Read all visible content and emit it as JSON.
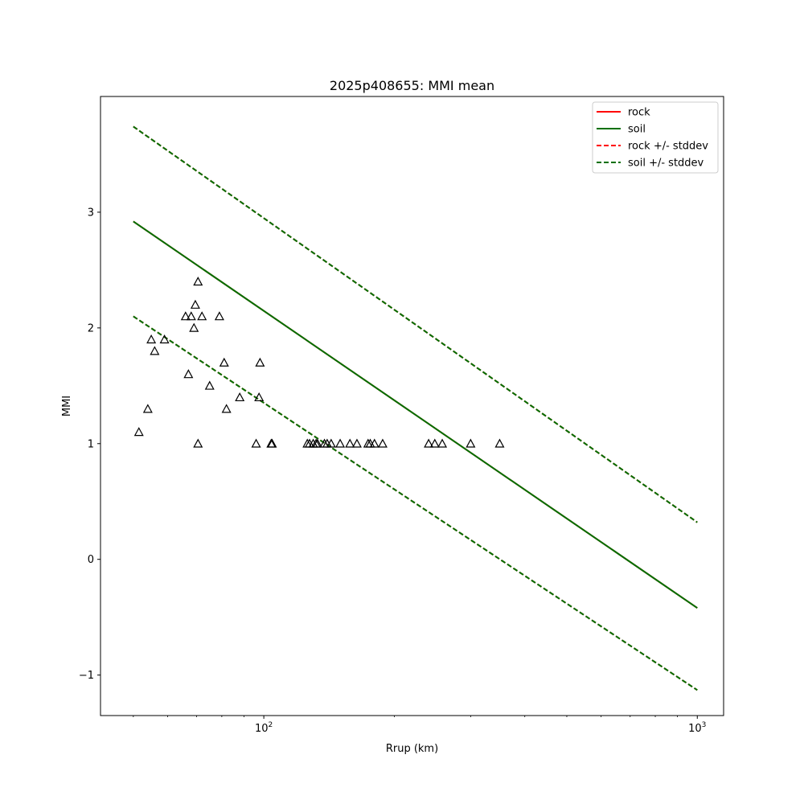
{
  "chart_data": {
    "type": "line",
    "title": "2025p408655: MMI mean",
    "xlabel": "Rrup (km)",
    "ylabel": "MMI",
    "xscale": "log",
    "xlim": [
      42,
      1150
    ],
    "ylim": [
      -1.35,
      4.0
    ],
    "xticks": [
      {
        "value": 100,
        "base": "10",
        "exp": "2"
      },
      {
        "value": 1000,
        "base": "10",
        "exp": "3"
      }
    ],
    "yticks": [
      {
        "value": -1,
        "label": "−1"
      },
      {
        "value": 0,
        "label": "0"
      },
      {
        "value": 1,
        "label": "1"
      },
      {
        "value": 2,
        "label": "2"
      },
      {
        "value": 3,
        "label": "3"
      }
    ],
    "grid": false,
    "legend_position": "top-right",
    "series": [
      {
        "name": "rock",
        "color": "#ff0000",
        "dash": "solid",
        "x": [
          50,
          1000
        ],
        "y": [
          2.92,
          -0.42
        ]
      },
      {
        "name": "soil",
        "color": "#007000",
        "dash": "solid",
        "x": [
          50,
          1000
        ],
        "y": [
          2.92,
          -0.42
        ]
      },
      {
        "name": "rock +/- stddev",
        "color": "#ff0000",
        "dash": "dashed",
        "x": [
          50,
          1000
        ],
        "y": [
          3.74,
          0.32
        ],
        "lower": {
          "x": [
            50,
            1000
          ],
          "y": [
            2.1,
            -1.13
          ]
        }
      },
      {
        "name": "soil +/- stddev",
        "color": "#007000",
        "dash": "dashed",
        "x": [
          50,
          1000
        ],
        "y": [
          3.74,
          0.32
        ],
        "lower": {
          "x": [
            50,
            1000
          ],
          "y": [
            2.1,
            -1.13
          ]
        }
      }
    ],
    "observations": {
      "marker": "triangle",
      "color": "#000000",
      "points": [
        [
          51.5,
          1.1
        ],
        [
          54,
          1.3
        ],
        [
          55,
          1.9
        ],
        [
          56,
          1.8
        ],
        [
          59,
          1.9
        ],
        [
          66,
          2.1
        ],
        [
          67,
          1.6
        ],
        [
          68,
          2.1
        ],
        [
          69,
          2.0
        ],
        [
          69.5,
          2.2
        ],
        [
          70.5,
          2.4
        ],
        [
          70.5,
          1.0
        ],
        [
          72,
          2.1
        ],
        [
          75,
          1.5
        ],
        [
          79,
          2.1
        ],
        [
          81,
          1.7
        ],
        [
          82,
          1.3
        ],
        [
          88,
          1.4
        ],
        [
          96,
          1.0
        ],
        [
          97.5,
          1.4
        ],
        [
          98,
          1.7
        ],
        [
          104,
          1.0
        ],
        [
          104.5,
          1.0
        ],
        [
          126,
          1.0
        ],
        [
          127.5,
          1.0
        ],
        [
          130,
          1.0
        ],
        [
          132,
          1.0
        ],
        [
          133,
          1.0
        ],
        [
          138,
          1.0
        ],
        [
          140,
          1.0
        ],
        [
          143,
          1.0
        ],
        [
          150,
          1.0
        ],
        [
          158,
          1.0
        ],
        [
          164,
          1.0
        ],
        [
          174,
          1.0
        ],
        [
          176,
          1.0
        ],
        [
          180,
          1.0
        ],
        [
          188,
          1.0
        ],
        [
          240,
          1.0
        ],
        [
          248,
          1.0
        ],
        [
          258,
          1.0
        ],
        [
          300,
          1.0
        ],
        [
          350,
          1.0
        ]
      ]
    }
  }
}
